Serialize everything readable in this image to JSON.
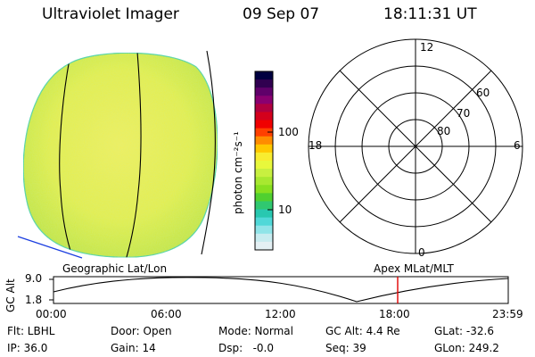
{
  "header": {
    "title": "Ultraviolet Imager",
    "date": "09 Sep 07",
    "time": "18:11:31 UT"
  },
  "colorbar": {
    "label": "photon cm⁻²s⁻¹",
    "ticks": [
      "100",
      "10"
    ],
    "colors": [
      "#000040",
      "#300050",
      "#60006a",
      "#8a0070",
      "#b00040",
      "#d4001c",
      "#f00000",
      "#ff4000",
      "#ff8c00",
      "#ffc800",
      "#f8ec30",
      "#e8f83c",
      "#c8f040",
      "#a8e830",
      "#88e020",
      "#50d030",
      "#30c870",
      "#28c8b0",
      "#50d8d8",
      "#90e4e8",
      "#c8ecf0",
      "#e4f0f4"
    ]
  },
  "polar": {
    "mlt_labels": {
      "top": "12",
      "left": "18",
      "right": "6",
      "bottom": "0"
    },
    "lat_labels": [
      "60",
      "70",
      "80"
    ]
  },
  "timeline": {
    "left_label": "Geographic Lat/Lon",
    "right_label": "Apex MLat/MLT",
    "axis_label": "GC Alt",
    "y_ticks": [
      "9.0",
      "1.8"
    ],
    "x_ticks": [
      "00:00",
      "06:00",
      "12:00",
      "18:00",
      "23:59"
    ],
    "marker_color": "#e00000"
  },
  "status": {
    "filter": "Flt: LBHL",
    "ip": "IP: 36.0",
    "door": "Door: Open",
    "gain": "Gain: 14",
    "mode": "Mode: Normal",
    "dsp": "Dsp:   -0.0",
    "gc_alt": "GC Alt: 4.4 Re",
    "seq": "Seq: 39",
    "glat": "GLat: -32.6",
    "glon": "GLon: 249.2"
  }
}
